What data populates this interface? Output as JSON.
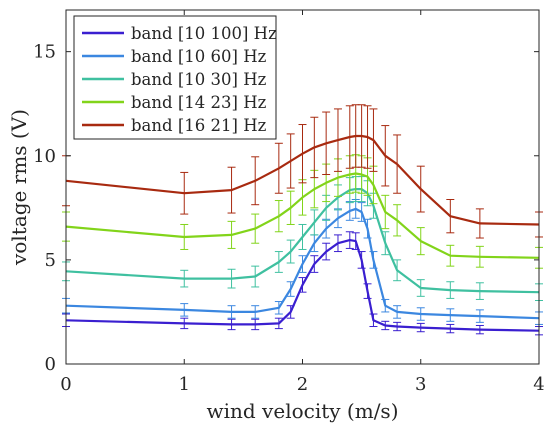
{
  "chart_data": {
    "type": "line",
    "title": "",
    "xlabel": "wind velocity (m/s)",
    "ylabel": "voltage rms (V)",
    "xlim": [
      0,
      4
    ],
    "ylim": [
      0,
      17
    ],
    "xticks": [
      "0",
      "1",
      "2",
      "3",
      "4"
    ],
    "yticks": [
      "0",
      "5",
      "10",
      "15"
    ],
    "grid": false,
    "legend_position": "top-left",
    "error_bars": true,
    "x": [
      0,
      1,
      1.4,
      1.6,
      1.8,
      1.9,
      2.0,
      2.1,
      2.2,
      2.3,
      2.4,
      2.45,
      2.5,
      2.55,
      2.6,
      2.7,
      2.8,
      3.0,
      3.25,
      3.5,
      4.0
    ],
    "series": [
      {
        "name": "band [10 100] Hz",
        "color": "#3a1fd0",
        "values": [
          2.1,
          1.95,
          1.9,
          1.9,
          1.95,
          2.5,
          3.8,
          4.8,
          5.4,
          5.8,
          5.95,
          5.9,
          5.0,
          3.5,
          2.1,
          1.85,
          1.8,
          1.75,
          1.7,
          1.65,
          1.6
        ],
        "errors": [
          0.3,
          0.25,
          0.25,
          0.25,
          0.25,
          0.3,
          0.35,
          0.4,
          0.4,
          0.4,
          0.4,
          0.4,
          0.4,
          0.35,
          0.3,
          0.2,
          0.2,
          0.2,
          0.2,
          0.2,
          0.2
        ]
      },
      {
        "name": "band [10 60] Hz",
        "color": "#3b87e0",
        "values": [
          2.8,
          2.6,
          2.5,
          2.5,
          2.7,
          3.6,
          4.8,
          5.8,
          6.5,
          7.0,
          7.35,
          7.45,
          7.3,
          6.5,
          5.0,
          2.8,
          2.5,
          2.4,
          2.35,
          2.3,
          2.2
        ],
        "errors": [
          0.35,
          0.3,
          0.3,
          0.3,
          0.3,
          0.35,
          0.4,
          0.4,
          0.45,
          0.45,
          0.45,
          0.45,
          0.45,
          0.45,
          0.4,
          0.3,
          0.3,
          0.3,
          0.3,
          0.3,
          0.3
        ]
      },
      {
        "name": "band [10 30] Hz",
        "color": "#3fc0a0",
        "values": [
          4.45,
          4.1,
          4.1,
          4.2,
          4.9,
          5.4,
          6.1,
          6.8,
          7.5,
          8.0,
          8.35,
          8.4,
          8.4,
          8.2,
          7.6,
          5.8,
          4.5,
          3.65,
          3.55,
          3.5,
          3.45
        ],
        "errors": [
          0.45,
          0.4,
          0.45,
          0.5,
          0.5,
          0.55,
          0.6,
          0.6,
          0.6,
          0.6,
          0.6,
          0.6,
          0.6,
          0.6,
          0.6,
          0.55,
          0.5,
          0.4,
          0.4,
          0.4,
          0.4
        ]
      },
      {
        "name": "band [14 23] Hz",
        "color": "#82d41a",
        "values": [
          6.6,
          6.1,
          6.2,
          6.5,
          7.1,
          7.5,
          8.0,
          8.4,
          8.7,
          8.95,
          9.1,
          9.15,
          9.1,
          9.0,
          8.6,
          7.3,
          6.9,
          5.9,
          5.2,
          5.15,
          5.1
        ],
        "errors": [
          0.7,
          0.6,
          0.65,
          0.7,
          0.75,
          0.8,
          0.85,
          0.9,
          0.9,
          0.9,
          0.9,
          0.9,
          0.9,
          0.9,
          0.9,
          0.8,
          0.75,
          0.65,
          0.5,
          0.5,
          0.5
        ]
      },
      {
        "name": "band [16 21] Hz",
        "color": "#a82a10",
        "values": [
          8.8,
          8.2,
          8.35,
          8.8,
          9.4,
          9.75,
          10.1,
          10.4,
          10.6,
          10.75,
          10.9,
          10.95,
          10.95,
          10.9,
          10.75,
          10.0,
          9.6,
          8.4,
          7.1,
          6.75,
          6.7
        ],
        "errors": [
          1.2,
          1.0,
          1.1,
          1.15,
          1.2,
          1.3,
          1.4,
          1.45,
          1.5,
          1.5,
          1.5,
          1.5,
          1.5,
          1.5,
          1.5,
          1.45,
          1.4,
          1.1,
          0.8,
          0.7,
          0.6
        ]
      }
    ]
  }
}
